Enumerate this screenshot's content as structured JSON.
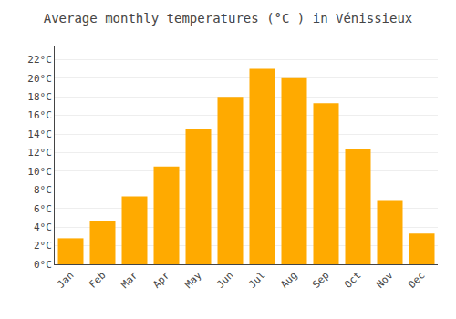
{
  "chart_data": {
    "type": "bar",
    "title": "Average monthly temperatures (°C ) in Vénissieux",
    "categories": [
      "Jan",
      "Feb",
      "Mar",
      "Apr",
      "May",
      "Jun",
      "Jul",
      "Aug",
      "Sep",
      "Oct",
      "Nov",
      "Dec"
    ],
    "values": [
      2.8,
      4.6,
      7.3,
      10.5,
      14.5,
      18.0,
      21.0,
      20.0,
      17.3,
      12.4,
      6.9,
      3.3
    ],
    "color": "#FFAA00",
    "ylim": [
      0,
      23.5
    ],
    "yticks": [
      {
        "value": 0,
        "label": "0°C"
      },
      {
        "value": 2,
        "label": "2°C"
      },
      {
        "value": 4,
        "label": "4°C"
      },
      {
        "value": 6,
        "label": "6°C"
      },
      {
        "value": 8,
        "label": "8°C"
      },
      {
        "value": 10,
        "label": "10°C"
      },
      {
        "value": 12,
        "label": "12°C"
      },
      {
        "value": 14,
        "label": "14°C"
      },
      {
        "value": 16,
        "label": "16°C"
      },
      {
        "value": 18,
        "label": "18°C"
      },
      {
        "value": 20,
        "label": "20°C"
      },
      {
        "value": 22,
        "label": "22°C"
      }
    ],
    "grid": true
  }
}
